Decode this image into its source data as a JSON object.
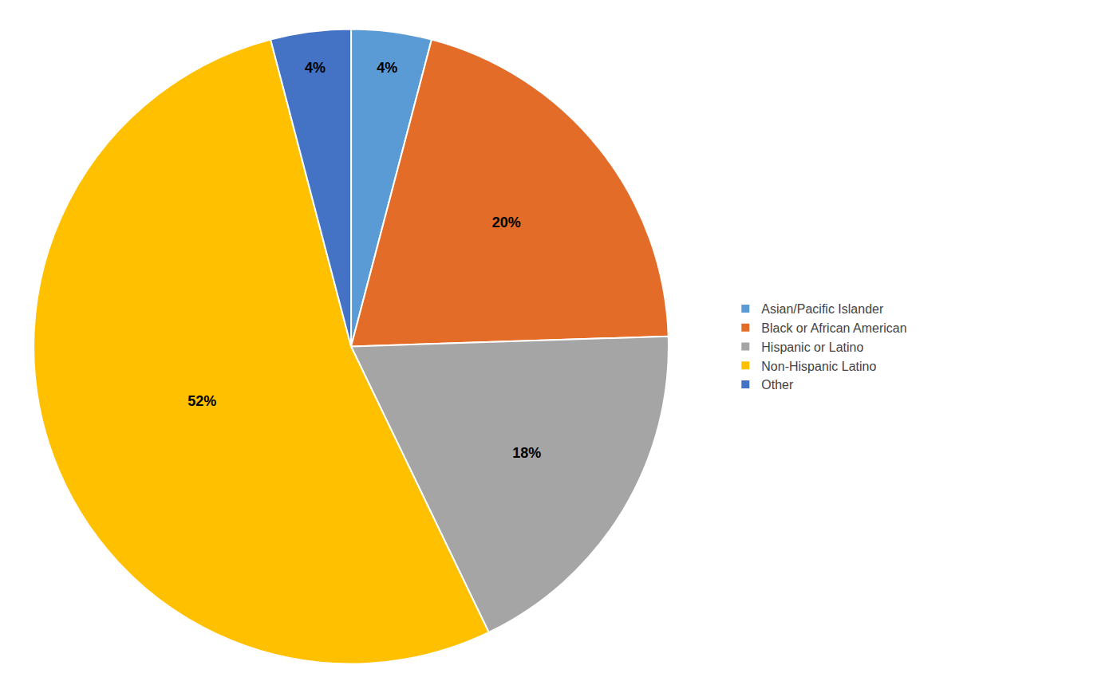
{
  "chart_data": {
    "type": "pie",
    "labels": [
      "Asian/Pacific Islander",
      "Black or African American",
      "Hispanic or Latino",
      "Non-Hispanic Latino",
      "Other"
    ],
    "values": [
      4,
      20,
      18,
      52,
      4
    ],
    "value_labels": [
      "4%",
      "20%",
      "18%",
      "52%",
      "4%"
    ],
    "colors": [
      "#5B9BD5",
      "#E36C29",
      "#A5A5A5",
      "#FFC000",
      "#4472C4"
    ],
    "data_labels": true,
    "legend": "right"
  }
}
